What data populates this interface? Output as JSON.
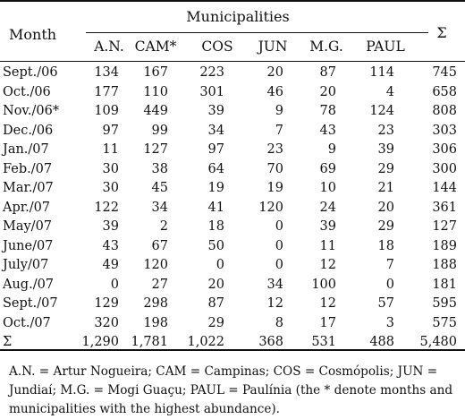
{
  "table": {
    "month_header": "Month",
    "group_header": "Municipalities",
    "columns": [
      "A.N.",
      "CAM*",
      "COS",
      "JUN",
      "M.G.",
      "PAUL"
    ],
    "total_header": "Σ",
    "rows": [
      {
        "month": "Sept./06",
        "values": [
          "134",
          "167",
          "223",
          "20",
          "87",
          "114"
        ],
        "total": "745"
      },
      {
        "month": "Oct./06",
        "values": [
          "177",
          "110",
          "301",
          "46",
          "20",
          "4"
        ],
        "total": "658"
      },
      {
        "month": "Nov./06*",
        "values": [
          "109",
          "449",
          "39",
          "9",
          "78",
          "124"
        ],
        "total": "808"
      },
      {
        "month": "Dec./06",
        "values": [
          "97",
          "99",
          "34",
          "7",
          "43",
          "23"
        ],
        "total": "303"
      },
      {
        "month": "Jan./07",
        "values": [
          "11",
          "127",
          "97",
          "23",
          "9",
          "39"
        ],
        "total": "306"
      },
      {
        "month": "Feb./07",
        "values": [
          "30",
          "38",
          "64",
          "70",
          "69",
          "29"
        ],
        "total": "300"
      },
      {
        "month": "Mar./07",
        "values": [
          "30",
          "45",
          "19",
          "19",
          "10",
          "21"
        ],
        "total": "144"
      },
      {
        "month": "Apr./07",
        "values": [
          "122",
          "34",
          "41",
          "120",
          "24",
          "20"
        ],
        "total": "361"
      },
      {
        "month": "May/07",
        "values": [
          "39",
          "2",
          "18",
          "0",
          "39",
          "29"
        ],
        "total": "127"
      },
      {
        "month": "June/07",
        "values": [
          "43",
          "67",
          "50",
          "0",
          "11",
          "18"
        ],
        "total": "189"
      },
      {
        "month": "July/07",
        "values": [
          "49",
          "120",
          "0",
          "0",
          "12",
          "7"
        ],
        "total": "188"
      },
      {
        "month": "Aug./07",
        "values": [
          "0",
          "27",
          "20",
          "34",
          "100",
          "0"
        ],
        "total": "181"
      },
      {
        "month": "Sept./07",
        "values": [
          "129",
          "298",
          "87",
          "12",
          "12",
          "57"
        ],
        "total": "595"
      },
      {
        "month": "Oct./07",
        "values": [
          "320",
          "198",
          "29",
          "8",
          "17",
          "3"
        ],
        "total": "575"
      },
      {
        "month": "Σ",
        "values": [
          "1,290",
          "1,781",
          "1,022",
          "368",
          "531",
          "488"
        ],
        "total": "5,480"
      }
    ]
  },
  "footnote": "A.N. = Artur Nogueira; CAM = Campinas; COS = Cosmópolis; JUN = Jundiaí; M.G. = Mogi Guaçu; PAUL = Paulínia (the * denote months and municipalities with the highest abundance)."
}
